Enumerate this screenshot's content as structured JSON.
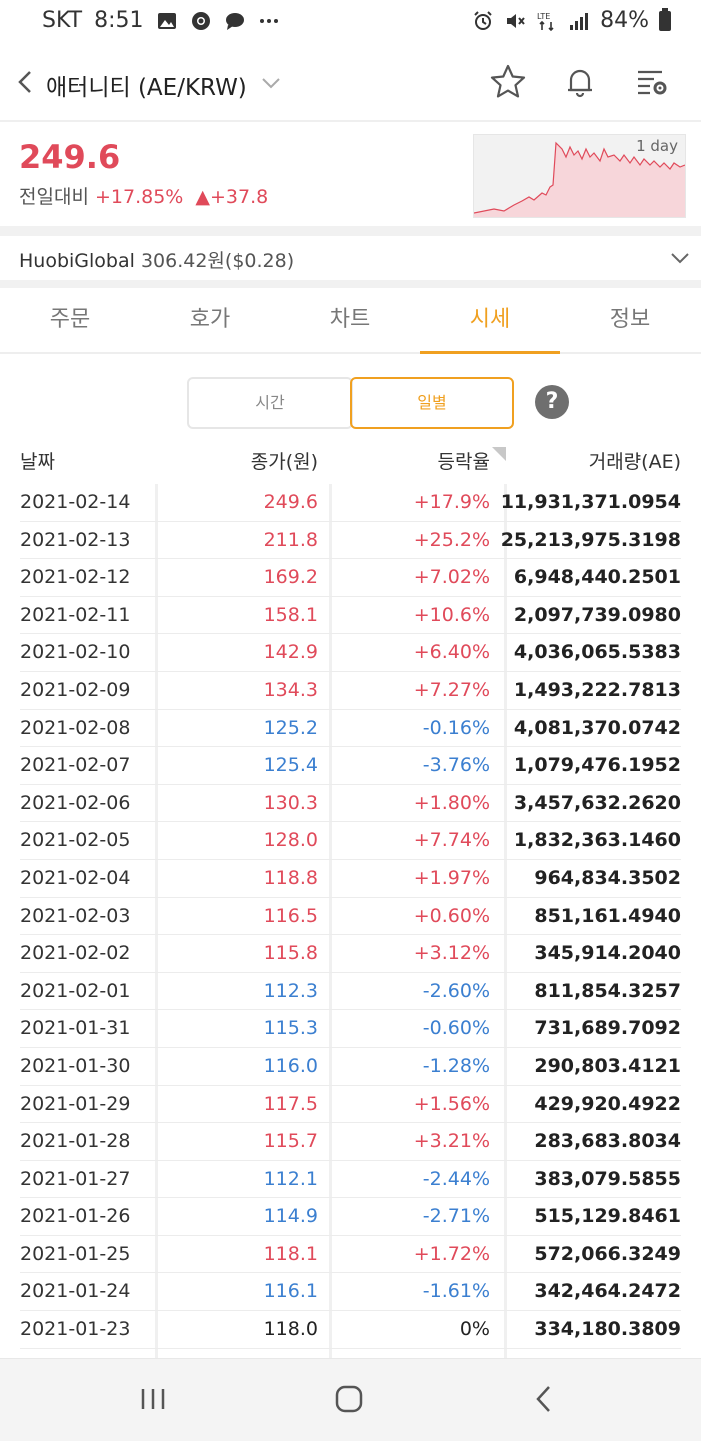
{
  "status_bar": {
    "carrier": "SKT",
    "time": "8:51",
    "icons_left": [
      "image-icon",
      "chrome-icon",
      "chat-icon",
      "more-dots-icon"
    ],
    "icons_right": [
      "alarm-icon",
      "mute-icon",
      "lte-icon",
      "signal-icon"
    ],
    "battery": "84%"
  },
  "header": {
    "title": "애터니티 (AE/KRW)",
    "icons": [
      "back-icon",
      "chevron-down-icon",
      "star-icon",
      "bell-icon",
      "settings-list-icon"
    ]
  },
  "price_panel": {
    "price": "249.6",
    "change_label": "전일대비",
    "change_pct": "+17.85%",
    "change_abs": "▲+37.8",
    "chart_tag": "1 day",
    "colors": {
      "up": "#e04a5a",
      "down": "#3b7fd0",
      "accent": "#f0a020"
    }
  },
  "exchange": {
    "name": "HuobiGlobal",
    "price": "306.42원($0.28)"
  },
  "tabs": [
    {
      "label": "주문",
      "active": false
    },
    {
      "label": "호가",
      "active": false
    },
    {
      "label": "차트",
      "active": false
    },
    {
      "label": "시세",
      "active": true
    },
    {
      "label": "정보",
      "active": false
    }
  ],
  "segment": {
    "time_label": "시간",
    "daily_label": "일별",
    "help": "?"
  },
  "table": {
    "headers": {
      "date": "날짜",
      "close": "종가(원)",
      "rate": "등락율",
      "volume": "거래량(AE)"
    },
    "rows": [
      {
        "date": "2021-02-14",
        "close": "249.6",
        "rate": "+17.9%",
        "volume": "11,931,371.0954",
        "dir": "up"
      },
      {
        "date": "2021-02-13",
        "close": "211.8",
        "rate": "+25.2%",
        "volume": "25,213,975.3198",
        "dir": "up"
      },
      {
        "date": "2021-02-12",
        "close": "169.2",
        "rate": "+7.02%",
        "volume": "6,948,440.2501",
        "dir": "up"
      },
      {
        "date": "2021-02-11",
        "close": "158.1",
        "rate": "+10.6%",
        "volume": "2,097,739.0980",
        "dir": "up"
      },
      {
        "date": "2021-02-10",
        "close": "142.9",
        "rate": "+6.40%",
        "volume": "4,036,065.5383",
        "dir": "up"
      },
      {
        "date": "2021-02-09",
        "close": "134.3",
        "rate": "+7.27%",
        "volume": "1,493,222.7813",
        "dir": "up"
      },
      {
        "date": "2021-02-08",
        "close": "125.2",
        "rate": "-0.16%",
        "volume": "4,081,370.0742",
        "dir": "down"
      },
      {
        "date": "2021-02-07",
        "close": "125.4",
        "rate": "-3.76%",
        "volume": "1,079,476.1952",
        "dir": "down"
      },
      {
        "date": "2021-02-06",
        "close": "130.3",
        "rate": "+1.80%",
        "volume": "3,457,632.2620",
        "dir": "up"
      },
      {
        "date": "2021-02-05",
        "close": "128.0",
        "rate": "+7.74%",
        "volume": "1,832,363.1460",
        "dir": "up"
      },
      {
        "date": "2021-02-04",
        "close": "118.8",
        "rate": "+1.97%",
        "volume": "964,834.3502",
        "dir": "up"
      },
      {
        "date": "2021-02-03",
        "close": "116.5",
        "rate": "+0.60%",
        "volume": "851,161.4940",
        "dir": "up"
      },
      {
        "date": "2021-02-02",
        "close": "115.8",
        "rate": "+3.12%",
        "volume": "345,914.2040",
        "dir": "up"
      },
      {
        "date": "2021-02-01",
        "close": "112.3",
        "rate": "-2.60%",
        "volume": "811,854.3257",
        "dir": "down"
      },
      {
        "date": "2021-01-31",
        "close": "115.3",
        "rate": "-0.60%",
        "volume": "731,689.7092",
        "dir": "down"
      },
      {
        "date": "2021-01-30",
        "close": "116.0",
        "rate": "-1.28%",
        "volume": "290,803.4121",
        "dir": "down"
      },
      {
        "date": "2021-01-29",
        "close": "117.5",
        "rate": "+1.56%",
        "volume": "429,920.4922",
        "dir": "up"
      },
      {
        "date": "2021-01-28",
        "close": "115.7",
        "rate": "+3.21%",
        "volume": "283,683.8034",
        "dir": "up"
      },
      {
        "date": "2021-01-27",
        "close": "112.1",
        "rate": "-2.44%",
        "volume": "383,079.5855",
        "dir": "down"
      },
      {
        "date": "2021-01-26",
        "close": "114.9",
        "rate": "-2.71%",
        "volume": "515,129.8461",
        "dir": "down"
      },
      {
        "date": "2021-01-25",
        "close": "118.1",
        "rate": "+1.72%",
        "volume": "572,066.3249",
        "dir": "up"
      },
      {
        "date": "2021-01-24",
        "close": "116.1",
        "rate": "-1.61%",
        "volume": "342,464.2472",
        "dir": "down"
      },
      {
        "date": "2021-01-23",
        "close": "118.0",
        "rate": "0%",
        "volume": "334,180.3809",
        "dir": "flat"
      }
    ]
  },
  "nav_bar": {
    "icons": [
      "recent-apps-icon",
      "home-icon",
      "back-nav-icon"
    ]
  }
}
